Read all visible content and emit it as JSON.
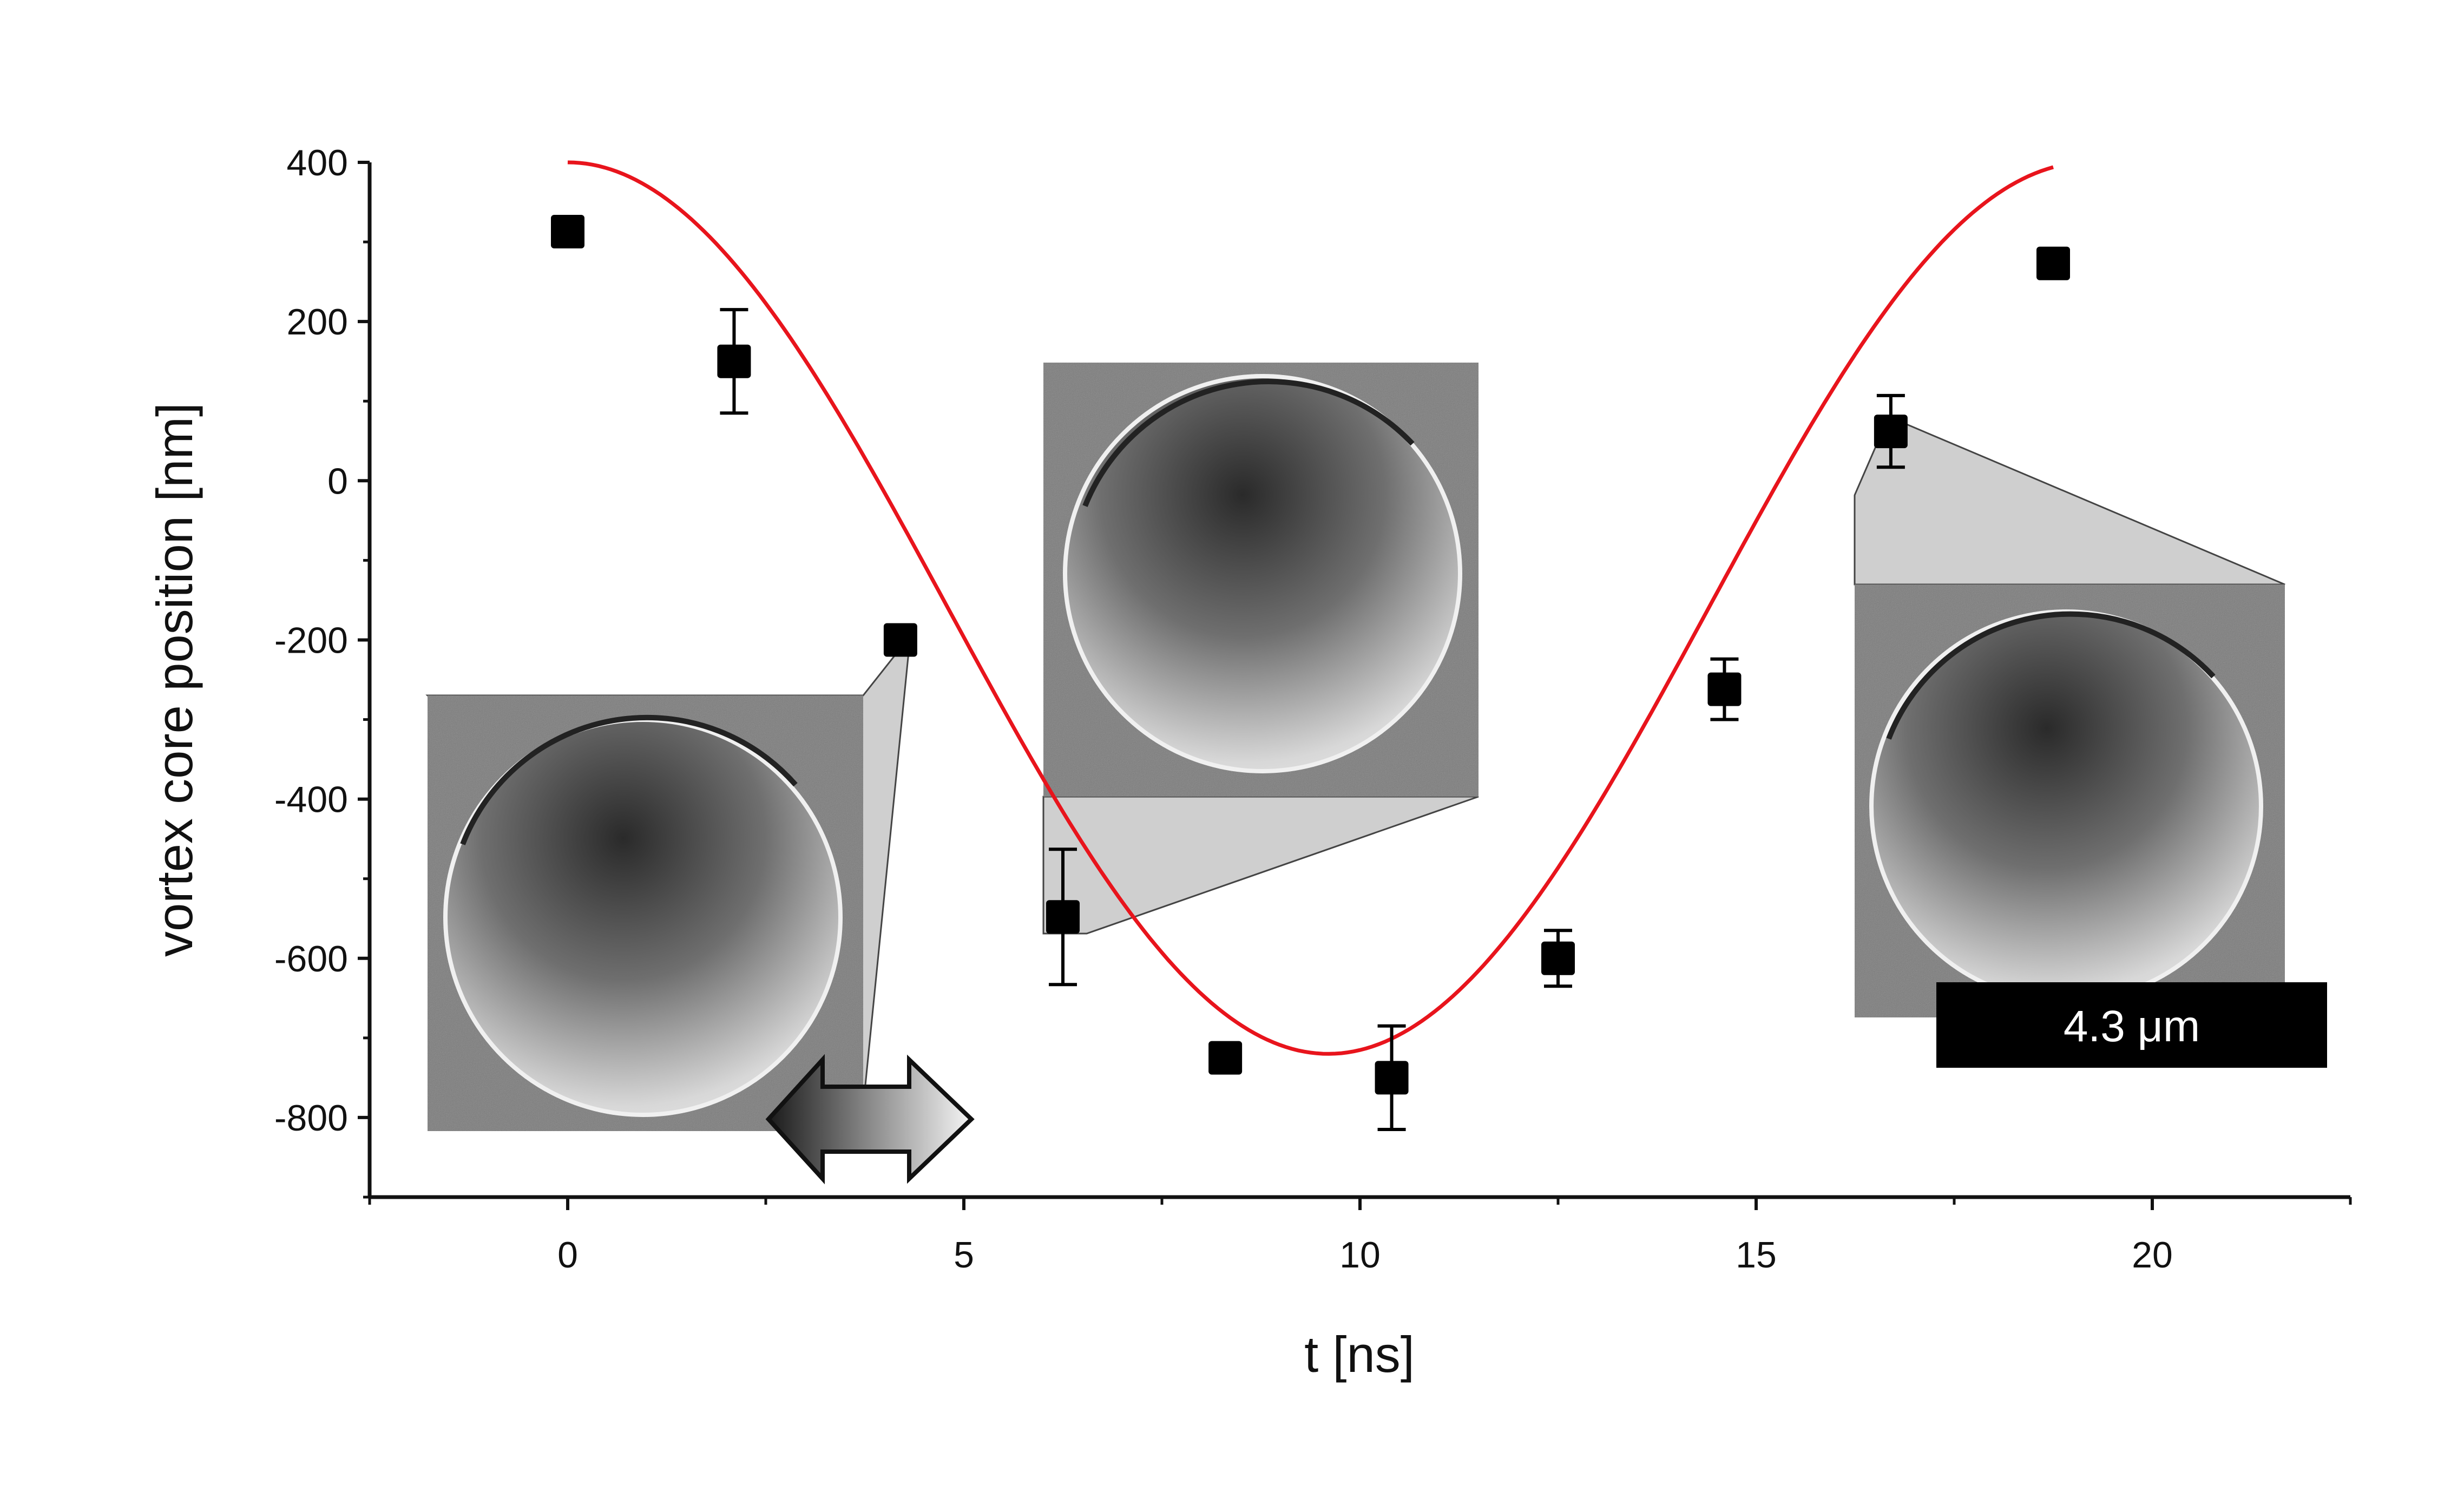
{
  "chart_data": {
    "type": "scatter",
    "title": "",
    "xlabel": "t [ns]",
    "ylabel": "vortex core position [nm]",
    "xlim": [
      -2.5,
      22.5
    ],
    "ylim": [
      -900,
      400
    ],
    "xticks": [
      0,
      5,
      10,
      15,
      20
    ],
    "xtick_labels": [
      "0",
      "5",
      "10",
      "15",
      "20"
    ],
    "yticks": [
      400,
      200,
      0,
      -200,
      -400,
      -600,
      -800
    ],
    "ytick_labels": [
      "400",
      "200",
      "0",
      "-200",
      "-400",
      "-600",
      "-800"
    ],
    "grid": false,
    "legend": "none",
    "series": [
      {
        "marker": "square",
        "color": "#000000",
        "x": [
          0.0,
          2.1,
          4.2,
          6.25,
          8.3,
          10.4,
          12.5,
          14.6,
          16.7,
          18.75
        ],
        "y": [
          313,
          150,
          -200,
          -548,
          -725,
          -750,
          -600,
          -262,
          62,
          273
        ],
        "yerr": [
          0,
          65,
          0,
          85,
          0,
          65,
          35,
          38,
          45,
          0
        ]
      }
    ],
    "fit": {
      "type": "line",
      "color": "#e8141c",
      "model": "sinusoid",
      "x_range": [
        0.0,
        18.75
      ],
      "offset": -160,
      "amplitude": 560,
      "period_ns": 19.2,
      "t_min_ns": 9.6
    },
    "insets": [
      {
        "name": "inset-t4",
        "points_to_x": 4.2,
        "points_to_y": -200
      },
      {
        "name": "inset-t6",
        "points_to_x": 6.25,
        "points_to_y": -548
      },
      {
        "name": "inset-t17",
        "points_to_x": 16.7,
        "points_to_y": 62
      }
    ],
    "scale_bar_label": "4.3 μm"
  }
}
